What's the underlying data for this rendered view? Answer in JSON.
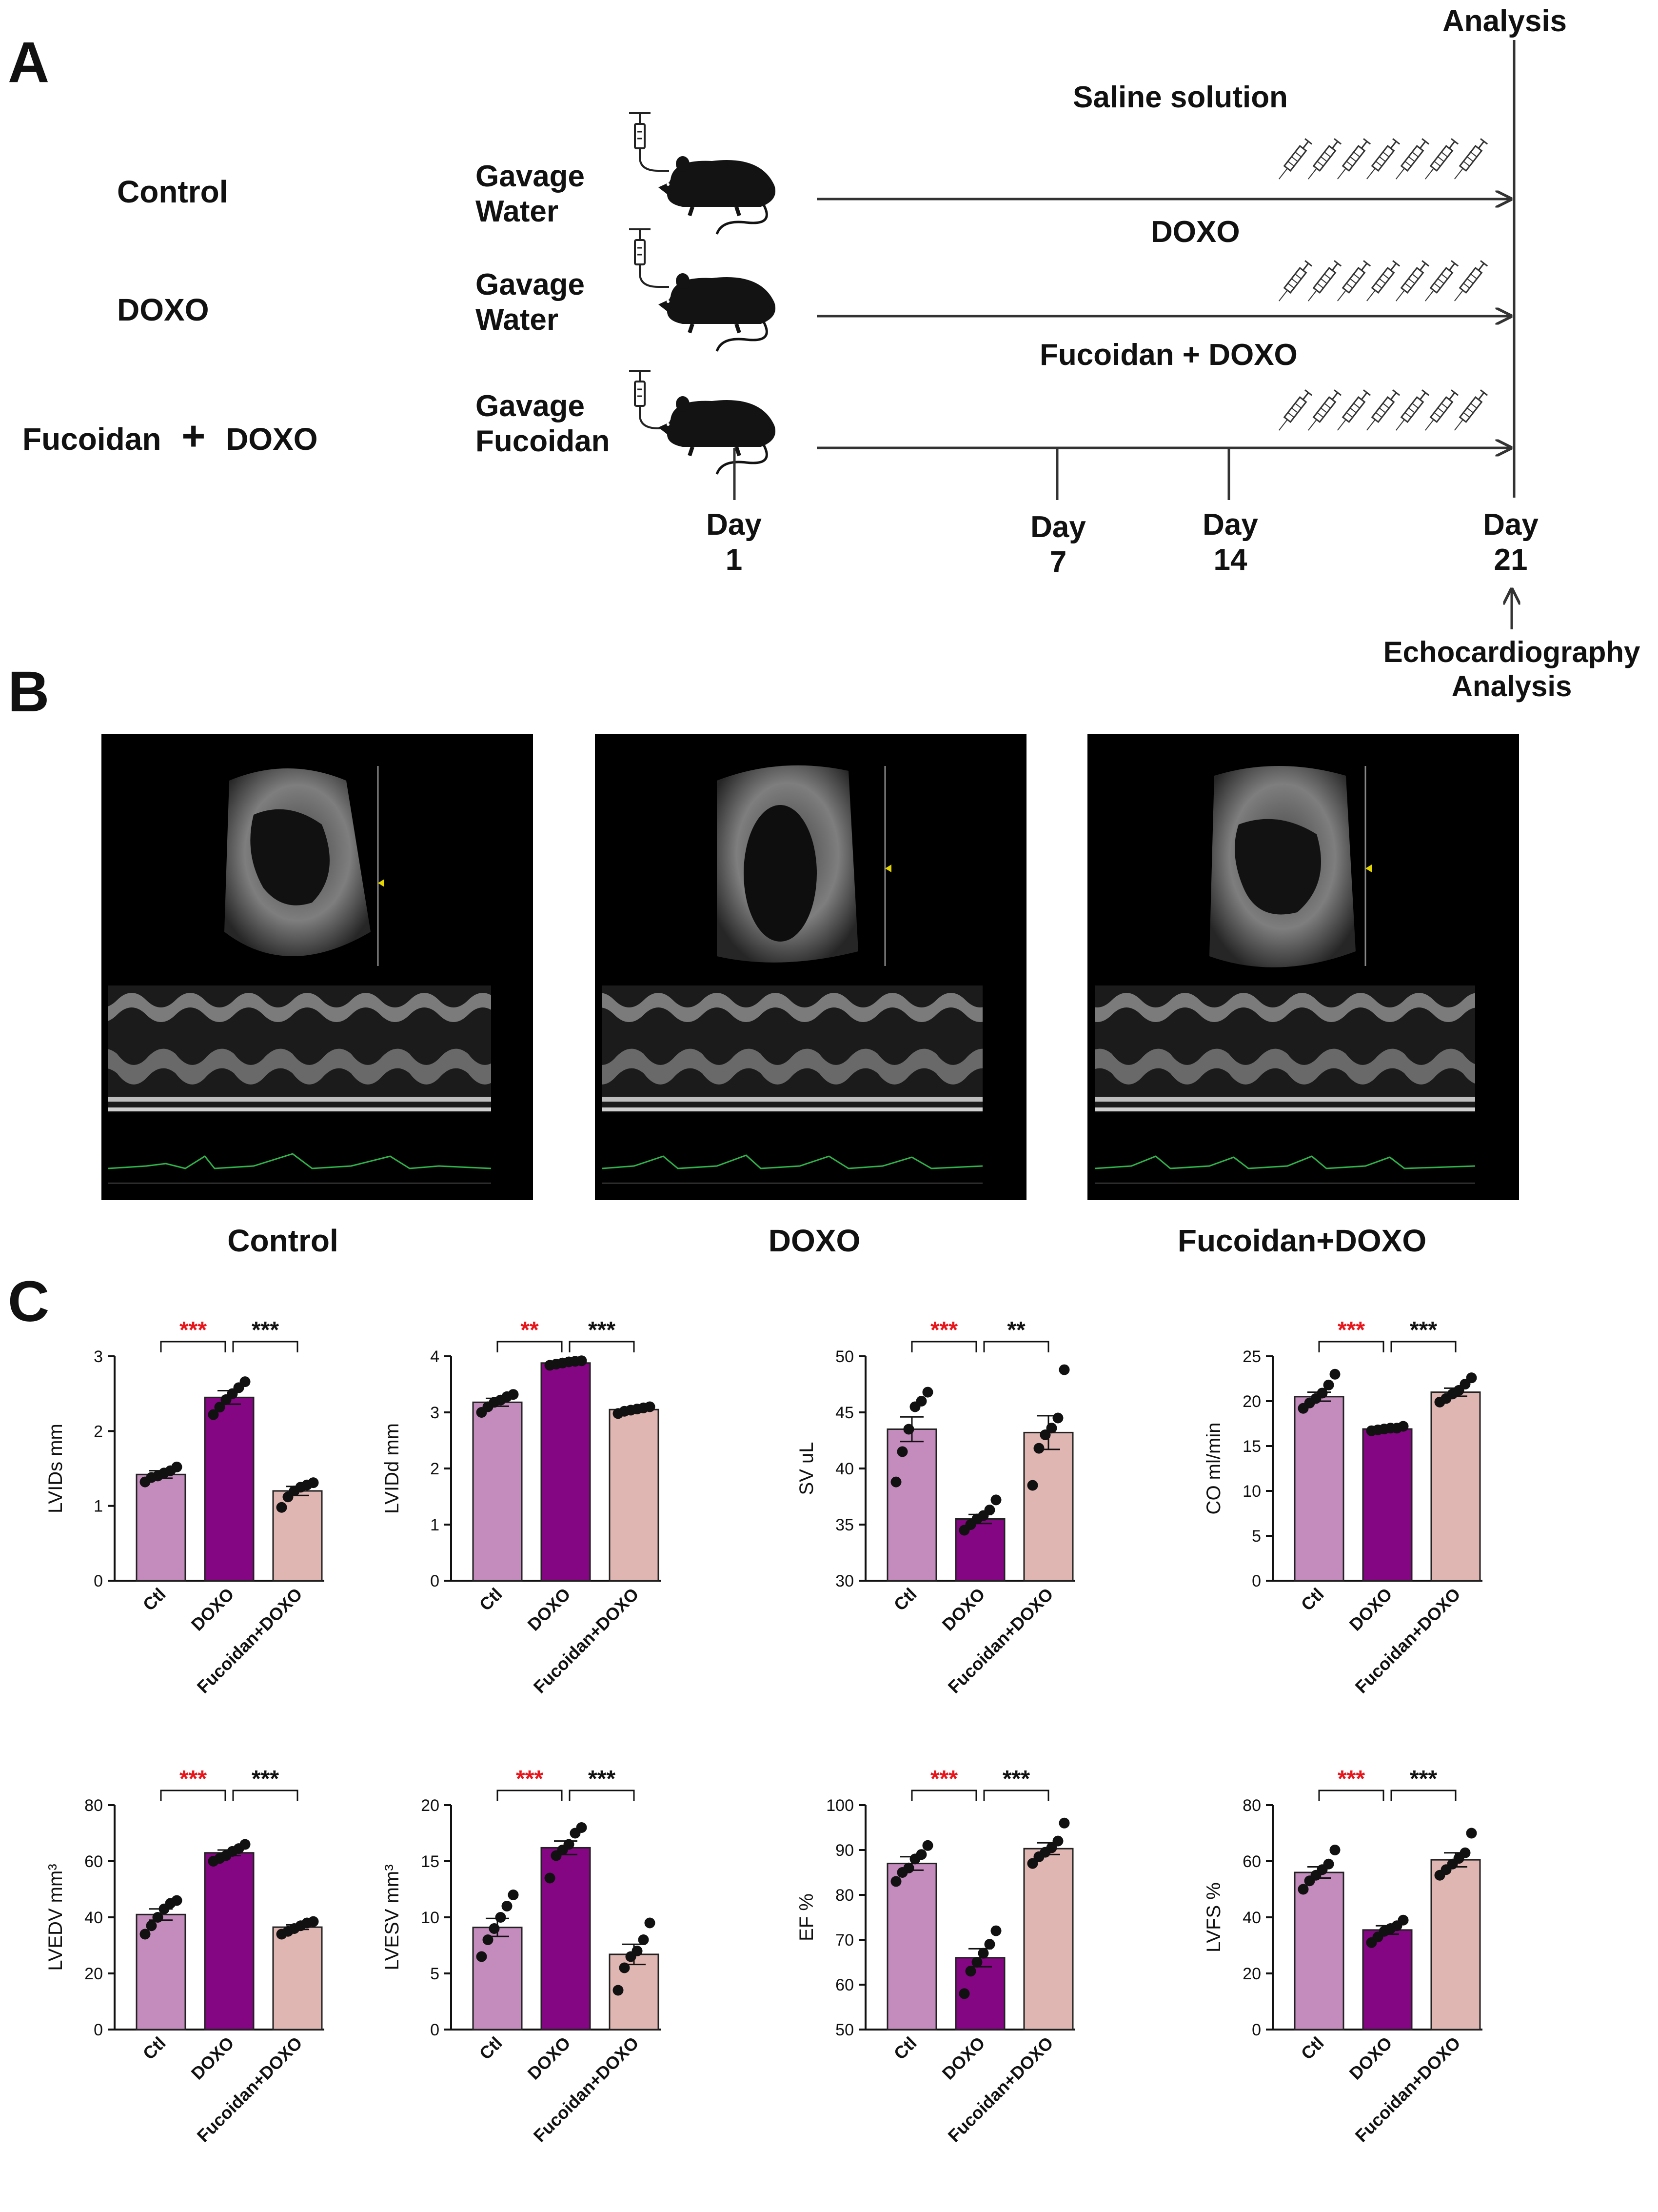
{
  "panel_labels": {
    "a": "A",
    "b": "B",
    "c": "C"
  },
  "schematic": {
    "groups": [
      "Control",
      "DOXO",
      "Fucoidan",
      "+",
      "DOXO"
    ],
    "gavage": [
      {
        "line1": "Gavage",
        "line2": "Water"
      },
      {
        "line1": "Gavage",
        "line2": "Water"
      },
      {
        "line1": "Gavage",
        "line2": "Fucoidan"
      }
    ],
    "timeline_labels": [
      "Saline solution",
      "DOXO",
      "Fucoidan + DOXO"
    ],
    "analysis": "Analysis",
    "days": [
      {
        "word": "Day",
        "num": "1"
      },
      {
        "word": "Day",
        "num": "7"
      },
      {
        "word": "Day",
        "num": "14"
      },
      {
        "word": "Day",
        "num": "21"
      }
    ],
    "echo_label_1": "Echocardiography",
    "echo_label_2": "Analysis"
  },
  "echo_captions": [
    "Control",
    "DOXO",
    "Fucoidan+DOXO"
  ],
  "colors": {
    "ctl": "#c48bbd",
    "doxo": "#840683",
    "fuc": "#e0b6b2",
    "sig_red": "#e8151b",
    "sig_black": "#111111"
  },
  "chart_data": [
    {
      "type": "bar",
      "ylabel": "LVIDs mm",
      "ylim": [
        0,
        3
      ],
      "yticks": [
        "0",
        "1",
        "2",
        "3"
      ],
      "categories": [
        "Ctl",
        "DOXO",
        "Fucoidan+DOXO"
      ],
      "values": [
        1.42,
        2.45,
        1.2
      ],
      "errors": [
        0.05,
        0.09,
        0.06
      ],
      "points": [
        [
          1.32,
          1.38,
          1.4,
          1.44,
          1.47,
          1.52
        ],
        [
          2.22,
          2.32,
          2.42,
          2.5,
          2.58,
          2.66
        ],
        [
          0.98,
          1.12,
          1.2,
          1.25,
          1.28,
          1.31
        ]
      ],
      "sig": [
        "***",
        "***"
      ]
    },
    {
      "type": "bar",
      "ylabel": "LVIDd mm",
      "ylim": [
        0,
        4
      ],
      "yticks": [
        "0",
        "1",
        "2",
        "3",
        "4"
      ],
      "categories": [
        "Ctl",
        "DOXO",
        "Fucoidan+DOXO"
      ],
      "values": [
        3.18,
        3.88,
        3.05
      ],
      "errors": [
        0.07,
        0.02,
        0.03
      ],
      "points": [
        [
          3.0,
          3.1,
          3.18,
          3.22,
          3.28,
          3.32
        ],
        [
          3.84,
          3.86,
          3.88,
          3.9,
          3.91,
          3.92
        ],
        [
          2.98,
          3.02,
          3.04,
          3.06,
          3.08,
          3.1
        ]
      ],
      "sig": [
        "**",
        "***"
      ]
    },
    {
      "type": "bar",
      "ylabel": "SV uL",
      "ylim": [
        30,
        50
      ],
      "yticks": [
        "30",
        "35",
        "40",
        "45",
        "50"
      ],
      "categories": [
        "Ctl",
        "DOXO",
        "Fucoidan+DOXO"
      ],
      "values": [
        43.5,
        35.5,
        43.2
      ],
      "errors": [
        1.1,
        0.4,
        1.5
      ],
      "points": [
        [
          38.8,
          41.5,
          43.5,
          45.5,
          46.0,
          46.8
        ],
        [
          34.5,
          35.0,
          35.5,
          35.8,
          36.3,
          37.2
        ],
        [
          38.5,
          41.8,
          43.0,
          43.6,
          44.5,
          48.8
        ]
      ],
      "sig": [
        "***",
        "**"
      ]
    },
    {
      "type": "bar",
      "ylabel": "CO ml/min",
      "ylim": [
        0,
        25
      ],
      "yticks": [
        "0",
        "5",
        "10",
        "15",
        "20",
        "25"
      ],
      "categories": [
        "Ctl",
        "DOXO",
        "Fucoidan+DOXO"
      ],
      "values": [
        20.5,
        16.9,
        21.0
      ],
      "errors": [
        0.5,
        0.15,
        0.45
      ],
      "points": [
        [
          19.2,
          19.8,
          20.3,
          20.9,
          21.8,
          23.0
        ],
        [
          16.7,
          16.8,
          16.9,
          17.0,
          17.0,
          17.2
        ],
        [
          19.9,
          20.3,
          20.8,
          21.2,
          21.9,
          22.6
        ]
      ],
      "sig": [
        "***",
        "***"
      ]
    },
    {
      "type": "bar",
      "ylabel": "LVEDV mm³",
      "ylim": [
        0,
        80
      ],
      "yticks": [
        "0",
        "20",
        "40",
        "60",
        "80"
      ],
      "categories": [
        "Ctl",
        "DOXO",
        "Fucoidan+DOXO"
      ],
      "values": [
        41,
        63,
        36.5
      ],
      "errors": [
        2.0,
        1.0,
        0.8
      ],
      "points": [
        [
          34,
          37,
          40,
          43,
          45,
          46
        ],
        [
          60,
          61,
          62,
          63.5,
          64.5,
          66
        ],
        [
          34,
          35,
          36,
          37,
          38,
          38.5
        ]
      ],
      "sig": [
        "***",
        "***"
      ]
    },
    {
      "type": "bar",
      "ylabel": "LVESV mm³",
      "ylim": [
        0,
        20
      ],
      "yticks": [
        "0",
        "5",
        "10",
        "15",
        "20"
      ],
      "categories": [
        "Ctl",
        "DOXO",
        "Fucoidan+DOXO"
      ],
      "values": [
        9.1,
        16.2,
        6.7
      ],
      "errors": [
        0.8,
        0.6,
        0.9
      ],
      "points": [
        [
          6.5,
          8.0,
          9.0,
          10.0,
          11.0,
          12.0
        ],
        [
          13.5,
          15.5,
          16.0,
          16.5,
          17.5,
          18.0
        ],
        [
          3.5,
          5.5,
          6.5,
          7.0,
          8.0,
          9.5
        ]
      ],
      "sig": [
        "***",
        "***"
      ]
    },
    {
      "type": "bar",
      "ylabel": "EF %",
      "ylim": [
        50,
        100
      ],
      "yticks": [
        "50",
        "60",
        "70",
        "80",
        "90",
        "100"
      ],
      "categories": [
        "Ctl",
        "DOXO",
        "Fucoidan+DOXO"
      ],
      "values": [
        87,
        66,
        90.3
      ],
      "errors": [
        1.5,
        2.0,
        1.3
      ],
      "points": [
        [
          83,
          85,
          86,
          88,
          89,
          91
        ],
        [
          58,
          63,
          65,
          67,
          69,
          72
        ],
        [
          87,
          88.5,
          89.5,
          90.5,
          92,
          96
        ]
      ],
      "sig": [
        "***",
        "***"
      ]
    },
    {
      "type": "bar",
      "ylabel": "LVFS %",
      "ylim": [
        0,
        80
      ],
      "yticks": [
        "0",
        "20",
        "40",
        "60",
        "80"
      ],
      "categories": [
        "Ctl",
        "DOXO",
        "Fucoidan+DOXO"
      ],
      "values": [
        56,
        35.5,
        60.5
      ],
      "errors": [
        2.0,
        1.5,
        2.5
      ],
      "points": [
        [
          50,
          53,
          55,
          57,
          59,
          64
        ],
        [
          31,
          33,
          35,
          36,
          37,
          39
        ],
        [
          55,
          57,
          59,
          61,
          63,
          70
        ]
      ],
      "sig": [
        "***",
        "***"
      ]
    }
  ]
}
